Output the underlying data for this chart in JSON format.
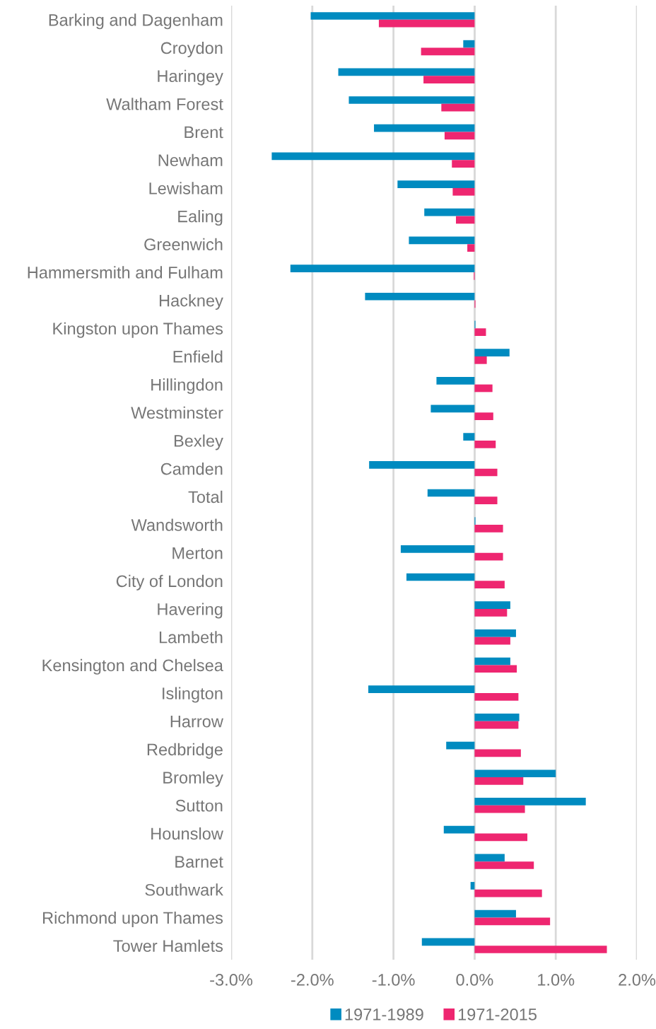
{
  "chart_data": {
    "type": "bar",
    "orientation": "horizontal",
    "categories": [
      "Barking and Dagenham",
      "Croydon",
      "Haringey",
      "Waltham Forest",
      "Brent",
      "Newham",
      "Lewisham",
      "Ealing",
      "Greenwich",
      "Hammersmith and Fulham",
      "Hackney",
      "Kingston upon Thames",
      "Enfield",
      "Hillingdon",
      "Westminster",
      "Bexley",
      "Camden",
      "Total",
      "Wandsworth",
      "Merton",
      "City of London",
      "Havering",
      "Lambeth",
      "Kensington and Chelsea",
      "Islington",
      "Harrow",
      "Redbridge",
      "Bromley",
      "Sutton",
      "Hounslow",
      "Barnet",
      "Southwark",
      "Richmond upon Thames",
      "Tower Hamlets"
    ],
    "series": [
      {
        "name": "1971-1989",
        "color": "#008bc0",
        "values": [
          -2.02,
          -0.14,
          -1.68,
          -1.55,
          -1.24,
          -2.5,
          -0.95,
          -0.62,
          -0.81,
          -2.27,
          -1.35,
          0.01,
          0.43,
          -0.47,
          -0.54,
          -0.14,
          -1.3,
          -0.58,
          0.01,
          -0.91,
          -0.84,
          0.44,
          0.51,
          0.44,
          -1.31,
          0.55,
          -0.35,
          1.0,
          1.37,
          -0.38,
          0.37,
          -0.05,
          0.51,
          -0.65
        ]
      },
      {
        "name": "1971-2015",
        "color": "#ee2670",
        "values": [
          -1.18,
          -0.66,
          -0.63,
          -0.41,
          -0.37,
          -0.28,
          -0.27,
          -0.23,
          -0.09,
          -0.01,
          0.01,
          0.14,
          0.15,
          0.22,
          0.23,
          0.26,
          0.28,
          0.28,
          0.35,
          0.35,
          0.37,
          0.4,
          0.44,
          0.52,
          0.54,
          0.54,
          0.57,
          0.6,
          0.62,
          0.65,
          0.73,
          0.83,
          0.93,
          1.63
        ]
      }
    ],
    "xlim": [
      -3,
      2
    ],
    "xticks": [
      {
        "value": -3,
        "label": "-3.0%"
      },
      {
        "value": -2,
        "label": "-2.0%"
      },
      {
        "value": -1,
        "label": "-1.0%"
      },
      {
        "value": 0,
        "label": "0.0%"
      },
      {
        "value": 1,
        "label": "1.0%"
      },
      {
        "value": 2,
        "label": "2.0%"
      }
    ],
    "grid": "x",
    "legend": "bottom"
  }
}
